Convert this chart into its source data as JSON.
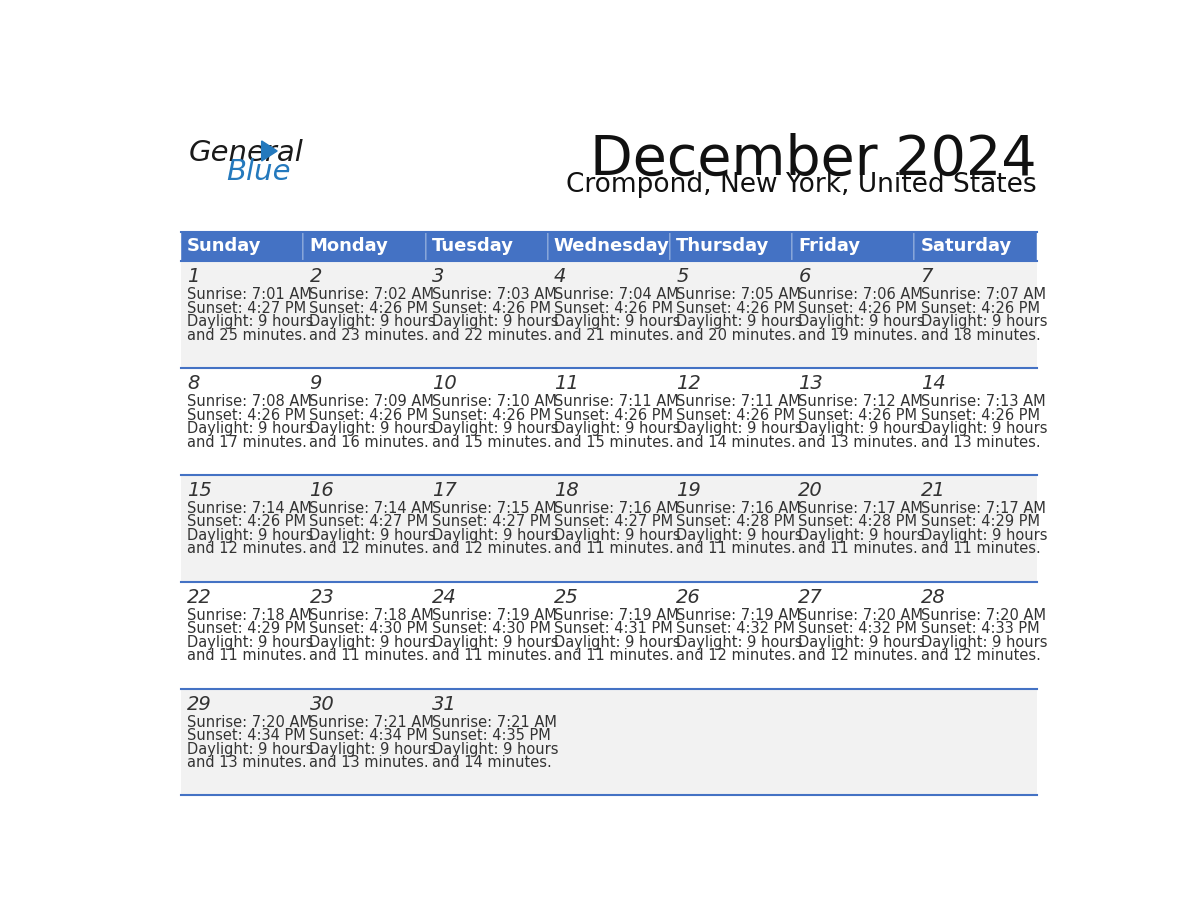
{
  "title": "December 2024",
  "subtitle": "Crompond, New York, United States",
  "header_color": "#4472C4",
  "header_text_color": "#FFFFFF",
  "day_names": [
    "Sunday",
    "Monday",
    "Tuesday",
    "Wednesday",
    "Thursday",
    "Friday",
    "Saturday"
  ],
  "bg_color": "#FFFFFF",
  "cell_bg_even": "#F2F2F2",
  "cell_bg_odd": "#FFFFFF",
  "border_color": "#4472C4",
  "text_color": "#333333",
  "weeks": [
    [
      {
        "day": 1,
        "sunrise": "7:01 AM",
        "sunset": "4:27 PM",
        "daylight_hrs": "9 hours",
        "daylight_min": "and 25 minutes."
      },
      {
        "day": 2,
        "sunrise": "7:02 AM",
        "sunset": "4:26 PM",
        "daylight_hrs": "9 hours",
        "daylight_min": "and 23 minutes."
      },
      {
        "day": 3,
        "sunrise": "7:03 AM",
        "sunset": "4:26 PM",
        "daylight_hrs": "9 hours",
        "daylight_min": "and 22 minutes."
      },
      {
        "day": 4,
        "sunrise": "7:04 AM",
        "sunset": "4:26 PM",
        "daylight_hrs": "9 hours",
        "daylight_min": "and 21 minutes."
      },
      {
        "day": 5,
        "sunrise": "7:05 AM",
        "sunset": "4:26 PM",
        "daylight_hrs": "9 hours",
        "daylight_min": "and 20 minutes."
      },
      {
        "day": 6,
        "sunrise": "7:06 AM",
        "sunset": "4:26 PM",
        "daylight_hrs": "9 hours",
        "daylight_min": "and 19 minutes."
      },
      {
        "day": 7,
        "sunrise": "7:07 AM",
        "sunset": "4:26 PM",
        "daylight_hrs": "9 hours",
        "daylight_min": "and 18 minutes."
      }
    ],
    [
      {
        "day": 8,
        "sunrise": "7:08 AM",
        "sunset": "4:26 PM",
        "daylight_hrs": "9 hours",
        "daylight_min": "and 17 minutes."
      },
      {
        "day": 9,
        "sunrise": "7:09 AM",
        "sunset": "4:26 PM",
        "daylight_hrs": "9 hours",
        "daylight_min": "and 16 minutes."
      },
      {
        "day": 10,
        "sunrise": "7:10 AM",
        "sunset": "4:26 PM",
        "daylight_hrs": "9 hours",
        "daylight_min": "and 15 minutes."
      },
      {
        "day": 11,
        "sunrise": "7:11 AM",
        "sunset": "4:26 PM",
        "daylight_hrs": "9 hours",
        "daylight_min": "and 15 minutes."
      },
      {
        "day": 12,
        "sunrise": "7:11 AM",
        "sunset": "4:26 PM",
        "daylight_hrs": "9 hours",
        "daylight_min": "and 14 minutes."
      },
      {
        "day": 13,
        "sunrise": "7:12 AM",
        "sunset": "4:26 PM",
        "daylight_hrs": "9 hours",
        "daylight_min": "and 13 minutes."
      },
      {
        "day": 14,
        "sunrise": "7:13 AM",
        "sunset": "4:26 PM",
        "daylight_hrs": "9 hours",
        "daylight_min": "and 13 minutes."
      }
    ],
    [
      {
        "day": 15,
        "sunrise": "7:14 AM",
        "sunset": "4:26 PM",
        "daylight_hrs": "9 hours",
        "daylight_min": "and 12 minutes."
      },
      {
        "day": 16,
        "sunrise": "7:14 AM",
        "sunset": "4:27 PM",
        "daylight_hrs": "9 hours",
        "daylight_min": "and 12 minutes."
      },
      {
        "day": 17,
        "sunrise": "7:15 AM",
        "sunset": "4:27 PM",
        "daylight_hrs": "9 hours",
        "daylight_min": "and 12 minutes."
      },
      {
        "day": 18,
        "sunrise": "7:16 AM",
        "sunset": "4:27 PM",
        "daylight_hrs": "9 hours",
        "daylight_min": "and 11 minutes."
      },
      {
        "day": 19,
        "sunrise": "7:16 AM",
        "sunset": "4:28 PM",
        "daylight_hrs": "9 hours",
        "daylight_min": "and 11 minutes."
      },
      {
        "day": 20,
        "sunrise": "7:17 AM",
        "sunset": "4:28 PM",
        "daylight_hrs": "9 hours",
        "daylight_min": "and 11 minutes."
      },
      {
        "day": 21,
        "sunrise": "7:17 AM",
        "sunset": "4:29 PM",
        "daylight_hrs": "9 hours",
        "daylight_min": "and 11 minutes."
      }
    ],
    [
      {
        "day": 22,
        "sunrise": "7:18 AM",
        "sunset": "4:29 PM",
        "daylight_hrs": "9 hours",
        "daylight_min": "and 11 minutes."
      },
      {
        "day": 23,
        "sunrise": "7:18 AM",
        "sunset": "4:30 PM",
        "daylight_hrs": "9 hours",
        "daylight_min": "and 11 minutes."
      },
      {
        "day": 24,
        "sunrise": "7:19 AM",
        "sunset": "4:30 PM",
        "daylight_hrs": "9 hours",
        "daylight_min": "and 11 minutes."
      },
      {
        "day": 25,
        "sunrise": "7:19 AM",
        "sunset": "4:31 PM",
        "daylight_hrs": "9 hours",
        "daylight_min": "and 11 minutes."
      },
      {
        "day": 26,
        "sunrise": "7:19 AM",
        "sunset": "4:32 PM",
        "daylight_hrs": "9 hours",
        "daylight_min": "and 12 minutes."
      },
      {
        "day": 27,
        "sunrise": "7:20 AM",
        "sunset": "4:32 PM",
        "daylight_hrs": "9 hours",
        "daylight_min": "and 12 minutes."
      },
      {
        "day": 28,
        "sunrise": "7:20 AM",
        "sunset": "4:33 PM",
        "daylight_hrs": "9 hours",
        "daylight_min": "and 12 minutes."
      }
    ],
    [
      {
        "day": 29,
        "sunrise": "7:20 AM",
        "sunset": "4:34 PM",
        "daylight_hrs": "9 hours",
        "daylight_min": "and 13 minutes."
      },
      {
        "day": 30,
        "sunrise": "7:21 AM",
        "sunset": "4:34 PM",
        "daylight_hrs": "9 hours",
        "daylight_min": "and 13 minutes."
      },
      {
        "day": 31,
        "sunrise": "7:21 AM",
        "sunset": "4:35 PM",
        "daylight_hrs": "9 hours",
        "daylight_min": "and 14 minutes."
      },
      null,
      null,
      null,
      null
    ]
  ],
  "logo_text1": "General",
  "logo_text2": "Blue",
  "logo_color1": "#1a1a1a",
  "logo_color2": "#2479BD",
  "logo_triangle_color": "#2479BD",
  "title_fontsize": 40,
  "subtitle_fontsize": 19,
  "header_fontsize": 13,
  "day_num_fontsize": 14,
  "cell_text_fontsize": 10.5
}
